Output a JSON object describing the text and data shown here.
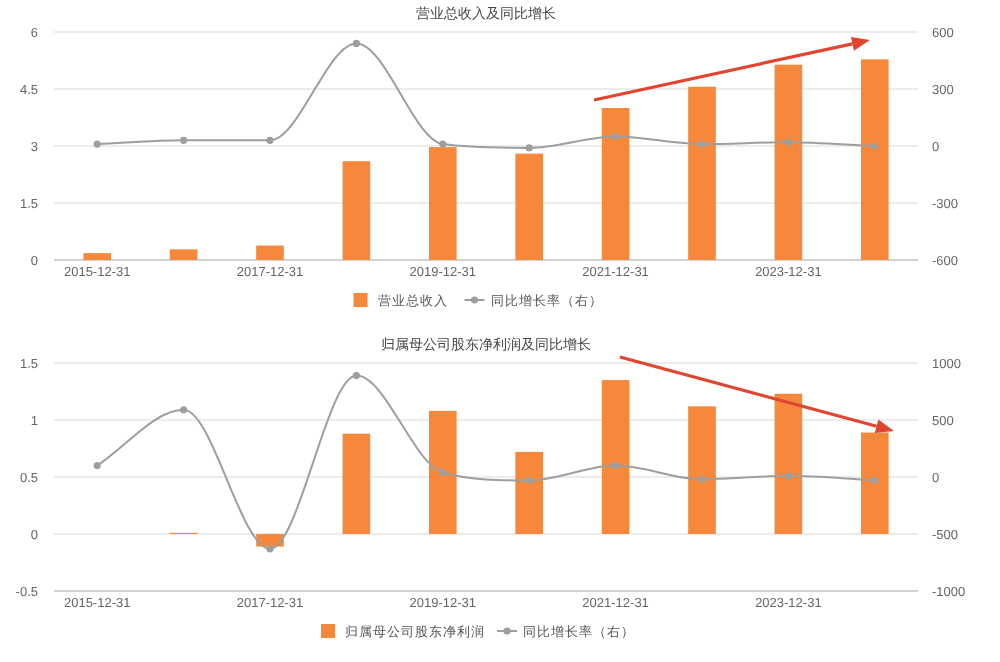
{
  "chart_data": [
    {
      "type": "bar",
      "title": "营业总收入及同比增长",
      "categories": [
        "2015-12-31",
        null,
        "2017-12-31",
        null,
        "2019-12-31",
        null,
        "2021-12-31",
        null,
        "2023-12-31",
        null
      ],
      "series": [
        {
          "name": "营业总收入",
          "color": "#f5883a",
          "values": [
            0.18,
            0.28,
            0.38,
            2.6,
            2.97,
            2.8,
            4.0,
            4.56,
            5.14,
            5.28
          ]
        },
        {
          "name": "同比增长率（右）",
          "type": "line",
          "axis": "y2",
          "color": "#9e9e9e",
          "values": [
            10,
            30,
            30,
            540,
            10,
            -10,
            50,
            10,
            20,
            0
          ]
        }
      ],
      "ylim": [
        0,
        6
      ],
      "yticks": [
        0,
        1.5,
        3,
        4.5,
        6
      ],
      "y2lim": [
        -600,
        600
      ],
      "y2ticks": [
        -600,
        -300,
        0,
        300,
        600
      ],
      "grid": "y",
      "legend": "bottom",
      "marker": "circle"
    },
    {
      "type": "bar",
      "title": "归属母公司股东净利润及同比增长",
      "categories": [
        "2015-12-31",
        null,
        "2017-12-31",
        null,
        "2019-12-31",
        null,
        "2021-12-31",
        null,
        "2023-12-31",
        null
      ],
      "series": [
        {
          "name": "归属母公司股东净利润",
          "color": "#f5883a",
          "values": [
            0,
            0.01,
            -0.11,
            0.88,
            1.08,
            0.72,
            1.35,
            1.12,
            1.23,
            0.89
          ]
        },
        {
          "name": "同比增长率（右）",
          "type": "line",
          "axis": "y2",
          "color": "#9e9e9e",
          "values": [
            100,
            590,
            -630,
            890,
            40,
            -30,
            100,
            -20,
            10,
            -30
          ]
        }
      ],
      "ylim": [
        -0.5,
        1.5
      ],
      "yticks": [
        -0.5,
        0,
        0.5,
        1,
        1.5
      ],
      "y2lim": [
        -1000,
        1000
      ],
      "y2ticks": [
        -1000,
        -500,
        0,
        500,
        1000
      ],
      "grid": "y",
      "legend": "bottom",
      "marker": "circle"
    }
  ]
}
